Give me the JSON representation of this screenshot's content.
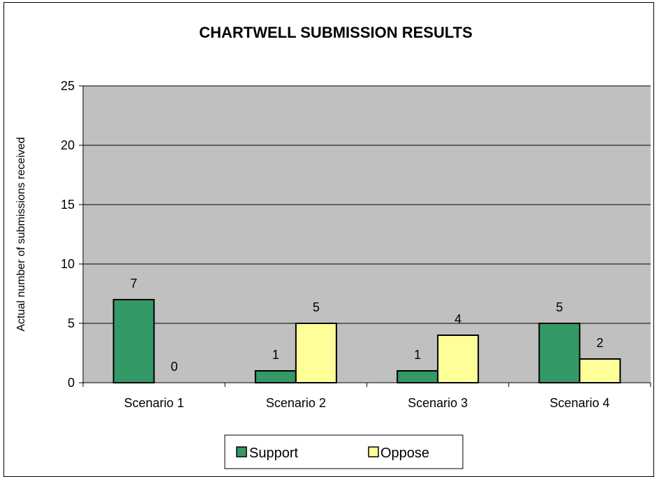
{
  "chart_data": {
    "type": "bar",
    "title": "CHARTWELL SUBMISSION RESULTS",
    "ylabel": "Actual number of submissions received",
    "xlabel": "",
    "categories": [
      "Scenario 1",
      "Scenario 2",
      "Scenario 3",
      "Scenario 4"
    ],
    "series": [
      {
        "name": "Support",
        "values": [
          7,
          1,
          1,
          5
        ],
        "color": "#339966"
      },
      {
        "name": "Oppose",
        "values": [
          0,
          5,
          4,
          2
        ],
        "color": "#ffff99"
      }
    ],
    "ylim": [
      0,
      25
    ],
    "yticks": [
      0,
      5,
      10,
      15,
      20,
      25
    ],
    "grid": true,
    "legend": "bottom",
    "plot_background": "#c0c0c0"
  }
}
